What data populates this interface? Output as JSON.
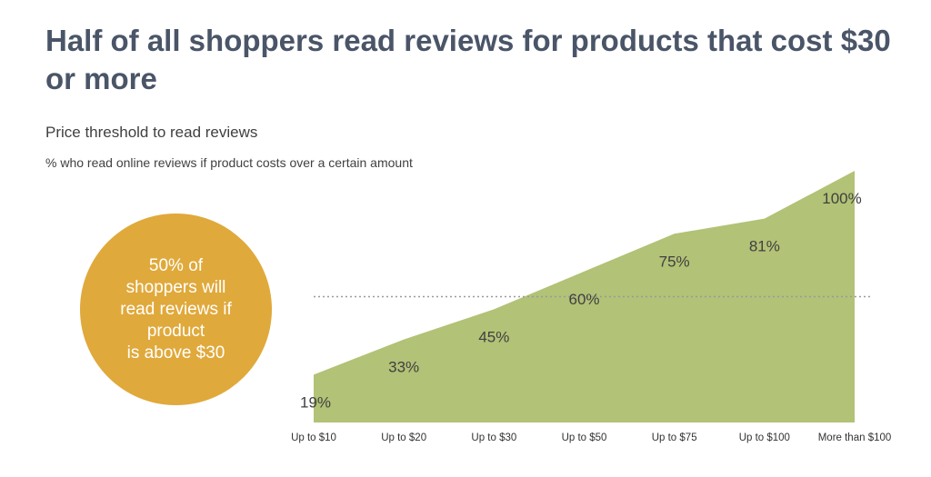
{
  "title": "Half of all shoppers read reviews for products that cost $30 or more",
  "subtitle": "Price threshold to read reviews",
  "caption": "% who read online reviews if product costs over a certain amount",
  "callout": {
    "text": "50% of\nshoppers will\nread reviews if\nproduct\nis above $30",
    "color": "#e0a93b"
  },
  "chart_data": {
    "type": "area",
    "categories": [
      "Up to $10",
      "Up to $20",
      "Up to $30",
      "Up to $50",
      "Up to $75",
      "Up to $100",
      "More than $100"
    ],
    "values": [
      19,
      33,
      45,
      60,
      75,
      81,
      100
    ],
    "data_labels": [
      "19%",
      "33%",
      "45%",
      "60%",
      "75%",
      "81%",
      "100%"
    ],
    "reference_line": 50,
    "ylim": [
      0,
      100
    ],
    "grid": false,
    "colors": {
      "area": "#b2c276",
      "reference_line": "#9a9a9a",
      "label": "#404040"
    }
  }
}
